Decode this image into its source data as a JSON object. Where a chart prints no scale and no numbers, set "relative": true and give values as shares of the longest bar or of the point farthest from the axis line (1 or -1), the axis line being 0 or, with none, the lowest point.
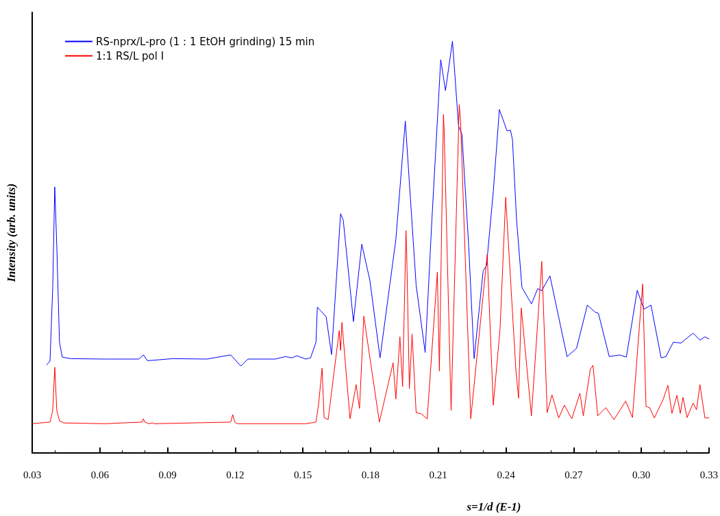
{
  "chart_data": {
    "type": "line",
    "relative": true,
    "xlabel": "s=1/d (E-1)",
    "ylabel": "Intensity (arb. units)",
    "xlim": [
      0.03,
      0.33
    ],
    "xticks": [
      0.03,
      0.06,
      0.09,
      0.12,
      0.15,
      0.18,
      0.21,
      0.24,
      0.27,
      {
        "value": 0.3,
        "label": "0.30"
      },
      0.33
    ],
    "grid": false,
    "legend": "top left",
    "marker": "none",
    "line_style": "solid",
    "series": [
      {
        "name": "RS-nprx/L-pro (1 : 1 EtOH grinding) 15 min",
        "color": "#0000ff",
        "x": [
          0.0364,
          0.0379,
          0.0391,
          0.04,
          0.0409,
          0.0421,
          0.0433,
          0.0469,
          0.0621,
          0.0772,
          0.0793,
          0.0811,
          0.0923,
          0.1074,
          0.118,
          0.1225,
          0.1256,
          0.1377,
          0.1422,
          0.1452,
          0.1473,
          0.1513,
          0.1534,
          0.1558,
          0.1564,
          0.1603,
          0.1627,
          0.1667,
          0.1679,
          0.1724,
          0.1761,
          0.1797,
          0.1842,
          0.1912,
          0.1954,
          0.2002,
          0.2042,
          0.2072,
          0.2111,
          0.2132,
          0.2163,
          0.219,
          0.2205,
          0.2235,
          0.2259,
          0.2299,
          0.2314,
          0.2344,
          0.2371,
          0.2405,
          0.242,
          0.2429,
          0.2447,
          0.2471,
          0.2513,
          0.2541,
          0.2559,
          0.2595,
          0.2671,
          0.2713,
          0.2761,
          0.2795,
          0.281,
          0.2858,
          0.2904,
          0.2934,
          0.2982,
          0.3012,
          0.3043,
          0.3088,
          0.3109,
          0.3142,
          0.3176,
          0.323,
          0.326,
          0.3282,
          0.33
        ],
        "values": [
          0.214,
          0.223,
          0.402,
          0.646,
          0.502,
          0.269,
          0.233,
          0.229,
          0.228,
          0.228,
          0.238,
          0.224,
          0.229,
          0.228,
          0.238,
          0.211,
          0.228,
          0.228,
          0.234,
          0.231,
          0.236,
          0.228,
          0.231,
          0.269,
          0.354,
          0.331,
          0.239,
          0.581,
          0.565,
          0.319,
          0.507,
          0.419,
          0.231,
          0.518,
          0.806,
          0.407,
          0.244,
          0.568,
          0.955,
          0.88,
          1.0,
          0.794,
          0.774,
          0.502,
          0.229,
          0.442,
          0.455,
          0.635,
          0.834,
          0.782,
          0.784,
          0.761,
          0.568,
          0.402,
          0.362,
          0.399,
          0.394,
          0.43,
          0.234,
          0.254,
          0.359,
          0.342,
          0.339,
          0.234,
          0.238,
          0.233,
          0.395,
          0.349,
          0.359,
          0.231,
          0.234,
          0.269,
          0.267,
          0.291,
          0.274,
          0.282,
          0.277
        ]
      },
      {
        "name": "1:1 RS/L pol I",
        "color": "#ff0000",
        "x": [
          0.03,
          0.0379,
          0.0391,
          0.04,
          0.0409,
          0.0421,
          0.0439,
          0.0621,
          0.0787,
          0.0793,
          0.0799,
          0.0817,
          0.0835,
          0.0841,
          0.118,
          0.1189,
          0.1198,
          0.121,
          0.1513,
          0.1558,
          0.157,
          0.1585,
          0.1594,
          0.1612,
          0.1661,
          0.1667,
          0.1673,
          0.1709,
          0.1736,
          0.1751,
          0.177,
          0.1839,
          0.19,
          0.1912,
          0.193,
          0.1942,
          0.1957,
          0.196,
          0.1972,
          0.1984,
          0.2002,
          0.2024,
          0.2051,
          0.2096,
          0.2105,
          0.2123,
          0.2126,
          0.2157,
          0.2193,
          0.2199,
          0.2244,
          0.2317,
          0.2344,
          0.2374,
          0.2399,
          0.2444,
          0.2456,
          0.2468,
          0.2513,
          0.2559,
          0.2583,
          0.2604,
          0.2634,
          0.2659,
          0.2692,
          0.2728,
          0.2743,
          0.2774,
          0.2786,
          0.2807,
          0.2843,
          0.2879,
          0.2931,
          0.2961,
          0.3006,
          0.3021,
          0.3037,
          0.3058,
          0.3097,
          0.3118,
          0.3136,
          0.3158,
          0.3173,
          0.3185,
          0.3203,
          0.323,
          0.3245,
          0.326,
          0.3282,
          0.33
        ],
        "values": [
          0.071,
          0.075,
          0.103,
          0.208,
          0.103,
          0.078,
          0.073,
          0.071,
          0.075,
          0.083,
          0.075,
          0.071,
          0.073,
          0.071,
          0.075,
          0.093,
          0.075,
          0.071,
          0.071,
          0.075,
          0.12,
          0.206,
          0.086,
          0.081,
          0.297,
          0.249,
          0.317,
          0.083,
          0.166,
          0.108,
          0.332,
          0.075,
          0.219,
          0.131,
          0.282,
          0.161,
          0.54,
          0.488,
          0.156,
          0.289,
          0.098,
          0.095,
          0.083,
          0.439,
          0.199,
          0.822,
          0.787,
          0.103,
          0.846,
          0.806,
          0.083,
          0.482,
          0.116,
          0.302,
          0.621,
          0.203,
          0.133,
          0.352,
          0.09,
          0.465,
          0.098,
          0.141,
          0.085,
          0.116,
          0.083,
          0.145,
          0.09,
          0.203,
          0.213,
          0.09,
          0.11,
          0.081,
          0.126,
          0.086,
          0.41,
          0.113,
          0.11,
          0.085,
          0.13,
          0.164,
          0.096,
          0.14,
          0.096,
          0.135,
          0.086,
          0.121,
          0.105,
          0.166,
          0.085,
          0.085
        ]
      }
    ]
  }
}
